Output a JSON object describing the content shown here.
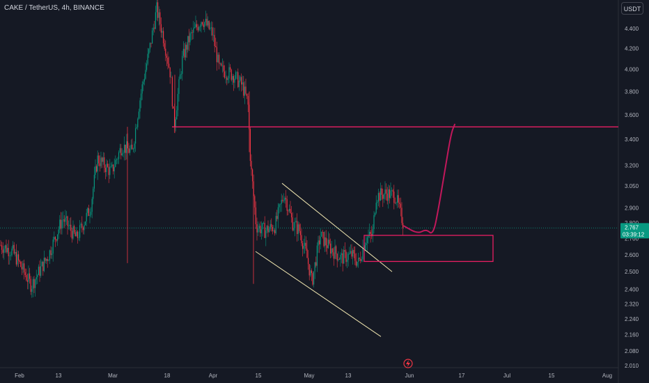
{
  "header": {
    "symbol": "CAKE / TetherUS, 4h, BINANCE"
  },
  "price_scale": {
    "currency": "USDT"
  },
  "last_price": {
    "value": "2.767",
    "countdown": "03:39:12",
    "color": "#089981"
  },
  "colors": {
    "up": "#089981",
    "down": "#f23645",
    "annotation": "#e91e63",
    "trendline": "#f0e6b0",
    "path": "#c2185b"
  },
  "chart_data": {
    "type": "candlestick",
    "title": "CAKE / TetherUS, 4h, BINANCE",
    "y_scale": "log",
    "ylim": [
      2.0,
      4.7
    ],
    "y_ticks": [
      "4.400",
      "4.200",
      "4.000",
      "3.800",
      "3.600",
      "3.400",
      "3.200",
      "3.050",
      "2.900",
      "2.800",
      "2.700",
      "2.600",
      "2.500",
      "2.400",
      "2.320",
      "2.240",
      "2.160",
      "2.080",
      "2.010"
    ],
    "x_ticks": [
      "Feb",
      "13",
      "Mar",
      "18",
      "Apr",
      "15",
      "May",
      "13",
      "Jun",
      "17",
      "Jul",
      "15",
      "Aug"
    ],
    "price_path": [
      [
        0,
        2.66
      ],
      [
        18,
        2.62
      ],
      [
        45,
        2.42
      ],
      [
        70,
        2.6
      ],
      [
        90,
        2.83
      ],
      [
        110,
        2.7
      ],
      [
        130,
        2.9
      ],
      [
        140,
        3.25
      ],
      [
        160,
        3.15
      ],
      [
        175,
        3.35
      ],
      [
        190,
        3.3
      ],
      [
        200,
        3.7
      ],
      [
        215,
        4.2
      ],
      [
        225,
        4.6
      ],
      [
        235,
        4.3
      ],
      [
        245,
        3.95
      ],
      [
        250,
        3.5
      ],
      [
        262,
        4.1
      ],
      [
        272,
        4.3
      ],
      [
        290,
        4.5
      ],
      [
        305,
        4.35
      ],
      [
        315,
        4.0
      ],
      [
        335,
        3.95
      ],
      [
        348,
        3.85
      ],
      [
        356,
        3.7
      ],
      [
        360,
        3.2
      ],
      [
        368,
        2.78
      ],
      [
        380,
        2.75
      ],
      [
        395,
        2.78
      ],
      [
        408,
        3.0
      ],
      [
        420,
        2.8
      ],
      [
        430,
        2.75
      ],
      [
        440,
        2.6
      ],
      [
        448,
        2.44
      ],
      [
        460,
        2.72
      ],
      [
        472,
        2.65
      ],
      [
        490,
        2.58
      ],
      [
        505,
        2.6
      ],
      [
        515,
        2.55
      ],
      [
        525,
        2.7
      ],
      [
        535,
        2.72
      ],
      [
        540,
        2.98
      ],
      [
        555,
        3.0
      ],
      [
        568,
        2.98
      ],
      [
        580,
        2.78
      ]
    ],
    "resistance": {
      "price": 3.5
    },
    "support_zone": {
      "top": 2.72,
      "bottom": 2.56
    },
    "channel": {
      "upper": [
        [
          405,
          3.07
        ],
        [
          563,
          2.5
        ]
      ],
      "lower": [
        [
          367,
          2.62
        ],
        [
          547,
          2.15
        ]
      ]
    },
    "projection": [
      [
        580,
        2.78
      ],
      [
        600,
        2.73
      ],
      [
        612,
        2.76
      ],
      [
        622,
        2.72
      ],
      [
        630,
        2.9
      ],
      [
        640,
        3.2
      ],
      [
        648,
        3.45
      ],
      [
        653,
        3.52
      ]
    ]
  }
}
